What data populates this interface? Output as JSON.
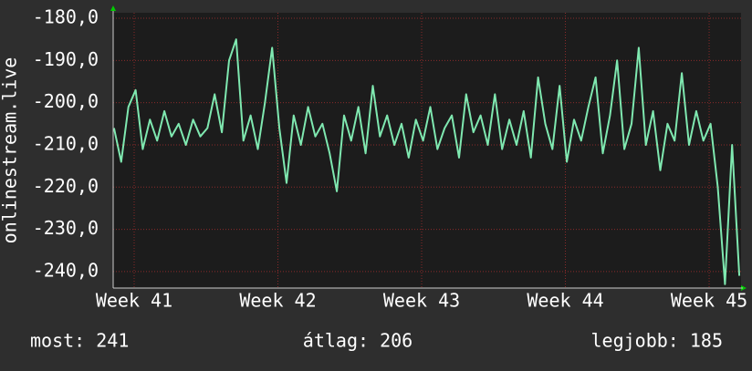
{
  "chart_data": {
    "type": "line",
    "y_label": "onlinestream.live",
    "color": "#7fe8b0",
    "grid": true,
    "xlim": [
      40.854,
      45.222
    ],
    "ylim": [
      -243.9,
      -178.7
    ],
    "yticks": [
      {
        "value": -180,
        "label": "-180,0"
      },
      {
        "value": -190,
        "label": "-190,0"
      },
      {
        "value": -200,
        "label": "-200,0"
      },
      {
        "value": -210,
        "label": "-210,0"
      },
      {
        "value": -220,
        "label": "-220,0"
      },
      {
        "value": -230,
        "label": "-230,0"
      },
      {
        "value": -240,
        "label": "-240,0"
      }
    ],
    "xticks": [
      {
        "value": 41,
        "label": "Week 41"
      },
      {
        "value": 42,
        "label": "Week 42"
      },
      {
        "value": 43,
        "label": "Week 43"
      },
      {
        "value": 44,
        "label": "Week 44"
      },
      {
        "value": 45,
        "label": "Week 45"
      }
    ],
    "x": [
      40.86,
      40.91,
      40.96,
      41.01,
      41.06,
      41.11,
      41.16,
      41.21,
      41.26,
      41.31,
      41.36,
      41.41,
      41.46,
      41.51,
      41.56,
      41.61,
      41.66,
      41.71,
      41.76,
      41.81,
      41.86,
      41.91,
      41.96,
      42.01,
      42.06,
      42.11,
      42.16,
      42.21,
      42.26,
      42.31,
      42.36,
      42.41,
      42.46,
      42.51,
      42.56,
      42.61,
      42.66,
      42.71,
      42.76,
      42.81,
      42.86,
      42.91,
      42.96,
      43.01,
      43.06,
      43.11,
      43.16,
      43.21,
      43.26,
      43.31,
      43.36,
      43.41,
      43.46,
      43.51,
      43.56,
      43.61,
      43.66,
      43.71,
      43.76,
      43.81,
      43.86,
      43.91,
      43.96,
      44.01,
      44.06,
      44.11,
      44.16,
      44.21,
      44.26,
      44.31,
      44.36,
      44.41,
      44.46,
      44.51,
      44.56,
      44.61,
      44.66,
      44.71,
      44.76,
      44.81,
      44.86,
      44.91,
      44.96,
      45.01,
      45.06,
      45.11,
      45.16,
      45.21
    ],
    "values": [
      -206,
      -214,
      -201,
      -197,
      -211,
      -204,
      -209,
      -202,
      -208,
      -205,
      -210,
      -204,
      -208,
      -206,
      -198,
      -207,
      -190,
      -185,
      -209,
      -203,
      -211,
      -200,
      -187,
      -206,
      -219,
      -203,
      -210,
      -201,
      -208,
      -205,
      -212,
      -221,
      -203,
      -209,
      -201,
      -212,
      -196,
      -208,
      -203,
      -210,
      -205,
      -213,
      -204,
      -209,
      -201,
      -211,
      -206,
      -203,
      -213,
      -198,
      -207,
      -203,
      -210,
      -198,
      -211,
      -204,
      -210,
      -202,
      -213,
      -194,
      -205,
      -211,
      -196,
      -214,
      -204,
      -209,
      -201,
      -194,
      -212,
      -203,
      -190,
      -211,
      -205,
      -187,
      -210,
      -202,
      -216,
      -205,
      -209,
      -193,
      -210,
      -202,
      -209,
      -205,
      -220,
      -243,
      -210,
      -241
    ],
    "footer": {
      "last": "most: 241",
      "average": "átlag: 206",
      "best": "legjobb: 185"
    }
  }
}
